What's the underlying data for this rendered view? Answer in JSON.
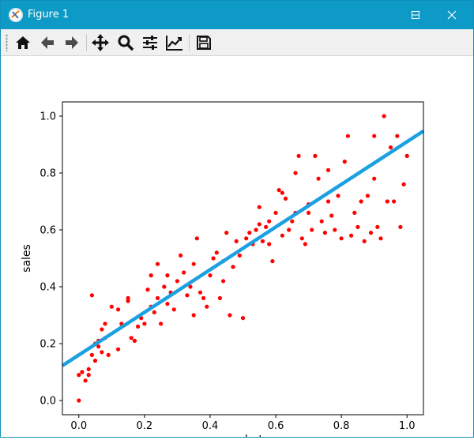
{
  "window": {
    "title": "Figure 1"
  },
  "toolbar": {
    "tools": [
      {
        "name": "home-icon",
        "label": "Home"
      },
      {
        "name": "back-arrow-icon",
        "label": "Back"
      },
      {
        "name": "forward-arrow-icon",
        "label": "Forward"
      },
      {
        "name": "pan-icon",
        "label": "Pan"
      },
      {
        "name": "zoom-icon",
        "label": "Zoom"
      },
      {
        "name": "subplots-config-icon",
        "label": "Configure subplots"
      },
      {
        "name": "edit-axis-icon",
        "label": "Edit axis"
      },
      {
        "name": "save-icon",
        "label": "Save"
      }
    ]
  },
  "chart_data": {
    "type": "scatter",
    "title": "",
    "xlabel": "wechat",
    "ylabel": "sales",
    "xlim": [
      -0.05,
      1.05
    ],
    "ylim": [
      -0.05,
      1.05
    ],
    "xticks": [
      0.0,
      0.2,
      0.4,
      0.6,
      0.8,
      1.0
    ],
    "yticks": [
      0.0,
      0.2,
      0.4,
      0.6,
      0.8,
      1.0
    ],
    "xtick_labels": [
      "0.0",
      "0.2",
      "0.4",
      "0.6",
      "0.8",
      "1.0"
    ],
    "ytick_labels": [
      "0.0",
      "0.2",
      "0.4",
      "0.6",
      "0.8",
      "1.0"
    ],
    "grid": false,
    "scatter_color": "#ff0000",
    "line_color": "#1ba1e2",
    "fit_line": {
      "slope": 0.75,
      "intercept": 0.16
    },
    "points": [
      [
        0.0,
        0.0
      ],
      [
        0.0,
        0.09
      ],
      [
        0.01,
        0.1
      ],
      [
        0.02,
        0.07
      ],
      [
        0.03,
        0.09
      ],
      [
        0.03,
        0.11
      ],
      [
        0.04,
        0.37
      ],
      [
        0.04,
        0.16
      ],
      [
        0.05,
        0.14
      ],
      [
        0.05,
        0.2
      ],
      [
        0.06,
        0.19
      ],
      [
        0.06,
        0.21
      ],
      [
        0.07,
        0.25
      ],
      [
        0.07,
        0.17
      ],
      [
        0.08,
        0.27
      ],
      [
        0.08,
        0.22
      ],
      [
        0.09,
        0.16
      ],
      [
        0.1,
        0.33
      ],
      [
        0.12,
        0.32
      ],
      [
        0.12,
        0.18
      ],
      [
        0.13,
        0.27
      ],
      [
        0.15,
        0.35
      ],
      [
        0.16,
        0.22
      ],
      [
        0.17,
        0.21
      ],
      [
        0.18,
        0.26
      ],
      [
        0.19,
        0.29
      ],
      [
        0.2,
        0.27
      ],
      [
        0.21,
        0.39
      ],
      [
        0.22,
        0.44
      ],
      [
        0.22,
        0.33
      ],
      [
        0.23,
        0.31
      ],
      [
        0.24,
        0.48
      ],
      [
        0.24,
        0.36
      ],
      [
        0.25,
        0.27
      ],
      [
        0.26,
        0.4
      ],
      [
        0.27,
        0.34
      ],
      [
        0.28,
        0.38
      ],
      [
        0.29,
        0.32
      ],
      [
        0.3,
        0.42
      ],
      [
        0.31,
        0.51
      ],
      [
        0.32,
        0.45
      ],
      [
        0.33,
        0.37
      ],
      [
        0.34,
        0.4
      ],
      [
        0.35,
        0.3
      ],
      [
        0.36,
        0.57
      ],
      [
        0.37,
        0.38
      ],
      [
        0.38,
        0.36
      ],
      [
        0.39,
        0.33
      ],
      [
        0.4,
        0.44
      ],
      [
        0.41,
        0.5
      ],
      [
        0.42,
        0.52
      ],
      [
        0.43,
        0.36
      ],
      [
        0.44,
        0.42
      ],
      [
        0.45,
        0.59
      ],
      [
        0.46,
        0.3
      ],
      [
        0.47,
        0.47
      ],
      [
        0.48,
        0.56
      ],
      [
        0.49,
        0.51
      ],
      [
        0.5,
        0.29
      ],
      [
        0.51,
        0.57
      ],
      [
        0.53,
        0.55
      ],
      [
        0.54,
        0.6
      ],
      [
        0.55,
        0.62
      ],
      [
        0.55,
        0.68
      ],
      [
        0.56,
        0.56
      ],
      [
        0.57,
        0.61
      ],
      [
        0.58,
        0.55
      ],
      [
        0.59,
        0.49
      ],
      [
        0.6,
        0.66
      ],
      [
        0.61,
        0.74
      ],
      [
        0.62,
        0.58
      ],
      [
        0.63,
        0.71
      ],
      [
        0.64,
        0.6
      ],
      [
        0.65,
        0.63
      ],
      [
        0.66,
        0.8
      ],
      [
        0.66,
        0.66
      ],
      [
        0.67,
        0.86
      ],
      [
        0.68,
        0.57
      ],
      [
        0.69,
        0.55
      ],
      [
        0.7,
        0.66
      ],
      [
        0.71,
        0.6
      ],
      [
        0.72,
        0.86
      ],
      [
        0.73,
        0.78
      ],
      [
        0.74,
        0.63
      ],
      [
        0.75,
        0.59
      ],
      [
        0.76,
        0.7
      ],
      [
        0.77,
        0.65
      ],
      [
        0.78,
        0.6
      ],
      [
        0.79,
        0.72
      ],
      [
        0.8,
        0.57
      ],
      [
        0.81,
        0.84
      ],
      [
        0.82,
        0.93
      ],
      [
        0.83,
        0.58
      ],
      [
        0.84,
        0.66
      ],
      [
        0.85,
        0.61
      ],
      [
        0.86,
        0.7
      ],
      [
        0.87,
        0.56
      ],
      [
        0.88,
        0.72
      ],
      [
        0.89,
        0.59
      ],
      [
        0.9,
        0.93
      ],
      [
        0.91,
        0.61
      ],
      [
        0.92,
        0.57
      ],
      [
        0.93,
        1.0
      ],
      [
        0.94,
        0.7
      ],
      [
        0.95,
        0.89
      ],
      [
        0.96,
        0.7
      ],
      [
        0.97,
        0.93
      ],
      [
        0.98,
        0.61
      ],
      [
        0.99,
        0.76
      ],
      [
        1.0,
        0.86
      ],
      [
        0.27,
        0.44
      ],
      [
        0.15,
        0.36
      ],
      [
        0.52,
        0.59
      ],
      [
        0.44,
        0.49
      ],
      [
        0.62,
        0.73
      ],
      [
        0.76,
        0.81
      ],
      [
        0.9,
        0.78
      ],
      [
        0.35,
        0.48
      ],
      [
        0.58,
        0.63
      ],
      [
        0.7,
        0.69
      ]
    ]
  }
}
